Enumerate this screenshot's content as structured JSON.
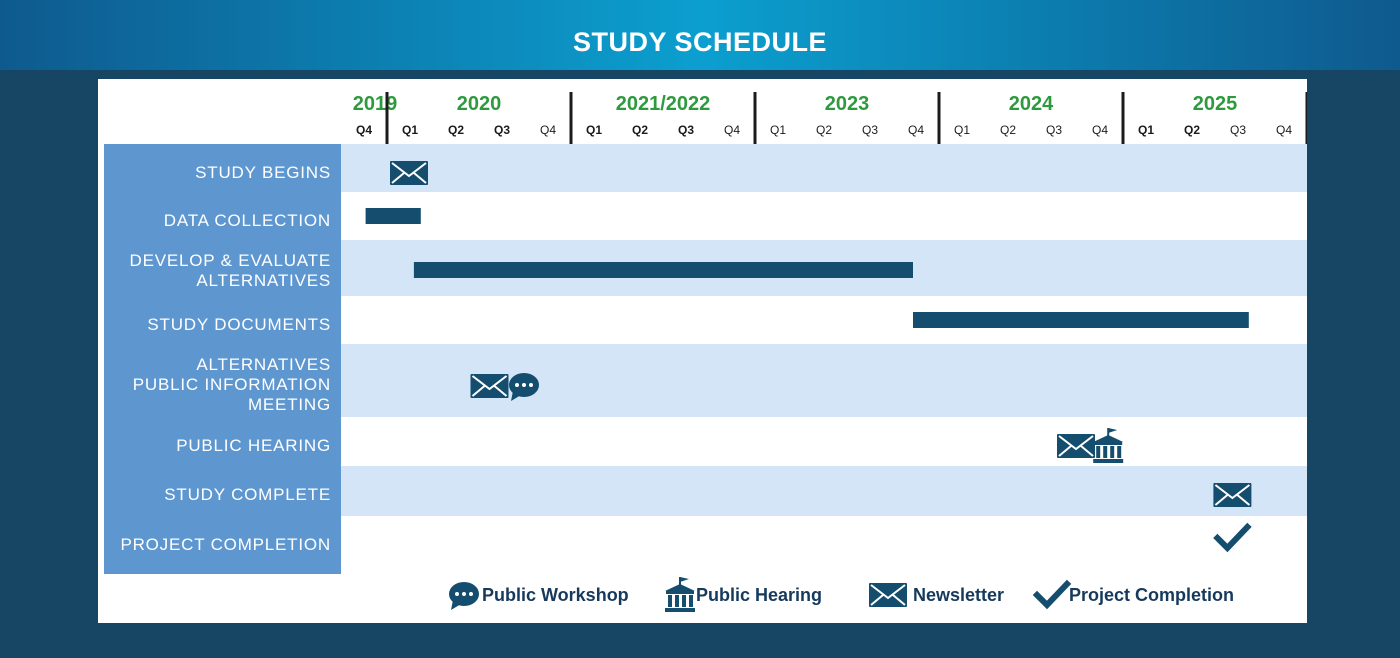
{
  "title": "STUDY SCHEDULE",
  "colors": {
    "bar": "#154d6e",
    "icon": "#154d6e",
    "label_bg": "#5e97d0",
    "row_band": "#d3e5f6",
    "year_text": "#2e9a3e"
  },
  "chart_data": {
    "type": "gantt",
    "title": "STUDY SCHEDULE",
    "timeline_start": "2019 Q4",
    "quarters": [
      "Q4",
      "Q1",
      "Q2",
      "Q3",
      "Q4",
      "Q1",
      "Q2",
      "Q3",
      "Q4",
      "Q1",
      "Q2",
      "Q3",
      "Q4",
      "Q1",
      "Q2",
      "Q3",
      "Q4",
      "Q1",
      "Q2",
      "Q3",
      "Q4"
    ],
    "bold_quarters": [
      true,
      true,
      true,
      true,
      false,
      true,
      true,
      true,
      false,
      false,
      false,
      false,
      false,
      false,
      false,
      false,
      false,
      true,
      true,
      false,
      false
    ],
    "years": [
      {
        "label": "2019",
        "start": 0,
        "span": 1
      },
      {
        "label": "2020",
        "start": 1,
        "span": 4
      },
      {
        "label": "2021/2022",
        "start": 5,
        "span": 4
      },
      {
        "label": "2023",
        "start": 9,
        "span": 4
      },
      {
        "label": "2024",
        "start": 13,
        "span": 4
      },
      {
        "label": "2025",
        "start": 17,
        "span": 4
      }
    ],
    "rows": [
      {
        "label": [
          "STUDY  BEGINS"
        ],
        "band": true,
        "markers": [
          {
            "type": "newsletter",
            "at": 1.0
          }
        ]
      },
      {
        "label": [
          "DATA COLLECTION"
        ],
        "band": false,
        "bars": [
          {
            "start": 0.1,
            "end": 1.3
          }
        ]
      },
      {
        "label": [
          "DEVELOP & EVALUATE",
          "ALTERNATIVES"
        ],
        "band": true,
        "bars": [
          {
            "start": 1.15,
            "end": 12.0
          }
        ]
      },
      {
        "label": [
          "STUDY DOCUMENTS"
        ],
        "band": false,
        "bars": [
          {
            "start": 12.0,
            "end": 19.3
          }
        ]
      },
      {
        "label": [
          "ALTERNATIVES",
          "PUBLIC INFORMATION",
          "MEETING"
        ],
        "band": true,
        "markers": [
          {
            "type": "newsletter",
            "at": 2.75
          },
          {
            "type": "workshop",
            "at": 3.5
          }
        ]
      },
      {
        "label": [
          "PUBLIC  HEARING"
        ],
        "band": false,
        "markers": [
          {
            "type": "newsletter",
            "at": 15.5
          },
          {
            "type": "hearing",
            "at": 16.2
          }
        ]
      },
      {
        "label": [
          "STUDY COMPLETE"
        ],
        "band": true,
        "markers": [
          {
            "type": "newsletter",
            "at": 18.9
          }
        ]
      },
      {
        "label": [
          "PROJECT COMPLETION"
        ],
        "band": false,
        "markers": [
          {
            "type": "check",
            "at": 18.9
          }
        ]
      }
    ],
    "legend": [
      {
        "type": "workshop",
        "label": "Public Workshop"
      },
      {
        "type": "hearing",
        "label": "Public Hearing"
      },
      {
        "type": "newsletter",
        "label": "Newsletter"
      },
      {
        "type": "check",
        "label": "Project Completion"
      }
    ]
  }
}
